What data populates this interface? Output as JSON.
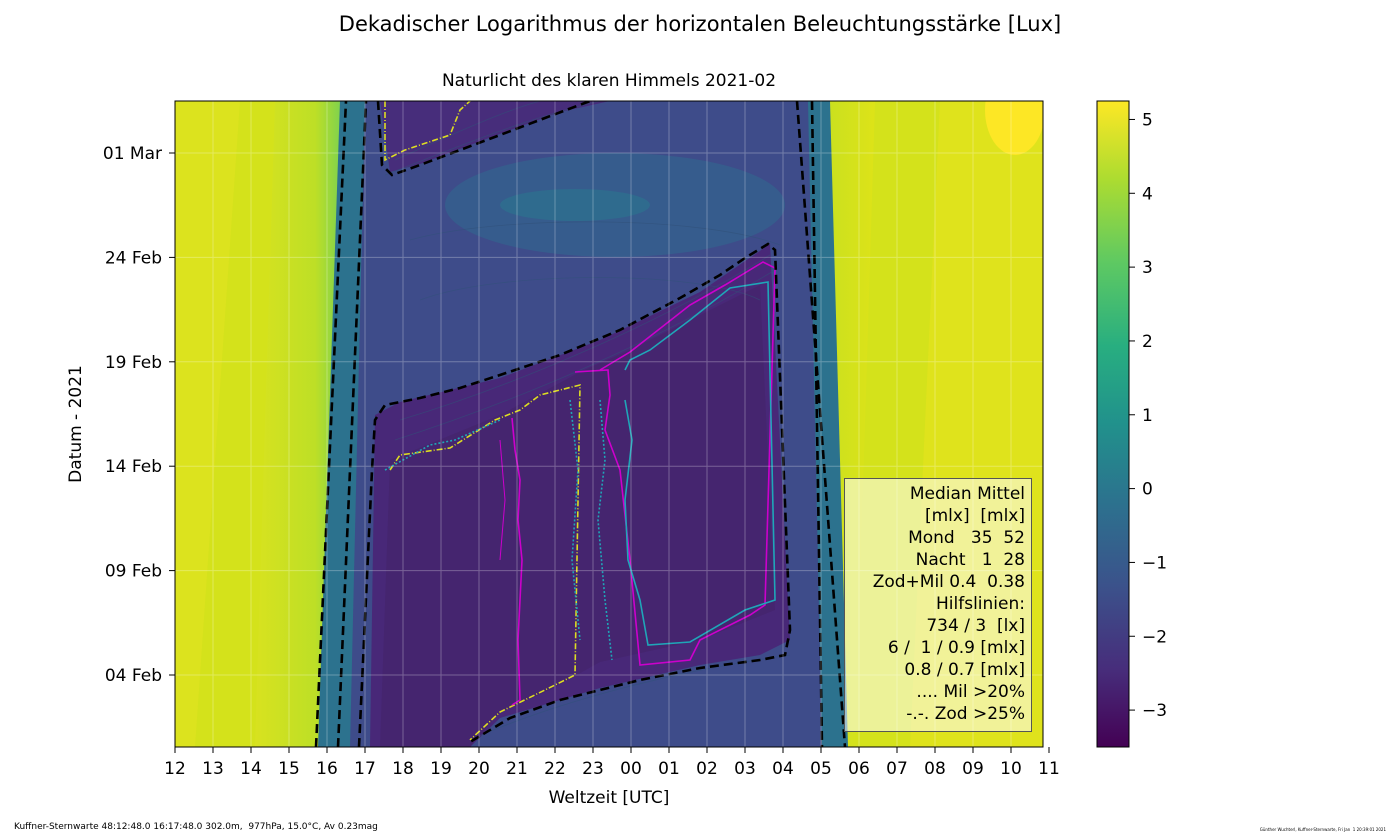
{
  "suptitle": "Dekadischer Logarithmus der horizontalen Beleuchtungsstärke [Lux]",
  "chart_data": {
    "type": "heatmap",
    "title": "Naturlicht des klaren Himmels 2021-02",
    "xlabel": "Weltzeit [UTC]",
    "ylabel": "Datum - 2021",
    "x_ticks": [
      "12",
      "13",
      "14",
      "15",
      "16",
      "17",
      "18",
      "19",
      "20",
      "21",
      "22",
      "23",
      "00",
      "01",
      "02",
      "03",
      "04",
      "05",
      "06",
      "07",
      "08",
      "09",
      "10",
      "11"
    ],
    "y_ticks": [
      "01 Mar",
      "24 Feb",
      "19 Feb",
      "14 Feb",
      "09 Feb",
      "04 Feb"
    ],
    "colorbar": {
      "ticks": [
        "5",
        "4",
        "3",
        "2",
        "1",
        "0",
        "−1",
        "−2",
        "−3"
      ],
      "range": [
        -3.5,
        5.25
      ],
      "colormap": "viridis"
    },
    "day_night_boundary": {
      "evening_utc": [
        {
          "date": "2021-01-31",
          "utc": 15.93
        },
        {
          "date": "2021-03-03",
          "utc": 16.65
        }
      ],
      "morning_utc": [
        {
          "date": "2021-01-31",
          "utc": 6.35
        },
        {
          "date": "2021-03-03",
          "utc": 5.45
        }
      ]
    },
    "moon_boundary": [
      {
        "date": "2021-01-31",
        "utc": 20.2
      },
      {
        "date": "2021-02-17",
        "utc": 17.3
      },
      {
        "date": "2021-02-20",
        "utc": 23.0
      },
      {
        "date": "2021-02-25",
        "utc": 4.5
      }
    ],
    "grid": true
  },
  "legend": {
    "lines": [
      "Median Mittel",
      "[mlx]  [mlx]",
      "Mond   35  52",
      "Nacht   1  28",
      "Zod+Mil 0.4  0.38",
      "Hilfslinien:",
      "734 / 3  [lx]",
      "6 /  1 / 0.9 [mlx]",
      "0.8 / 0.7 [mlx]",
      ".... Mil >20%",
      "-.-. Zod >25%"
    ]
  },
  "footer": {
    "left": "Kuffner-Sternwarte 48:12:48.0 16:17:48.0 302.0m,  977hPa, 15.0°C, Av 0.23mag",
    "right": "Günther Wuchterl, Kuffner-Sternwarte, Fri Jan  1 20:39:01 2021"
  },
  "colors": {
    "dark": "#472d7b",
    "darker": "#44206a",
    "moon": "#3e4c8a",
    "twilight": "#2c728e",
    "day": "#d2e21b",
    "dayBright": "#fde725",
    "dashed": "#000000",
    "magenta": "#cc00cc",
    "cyan": "#1fa6b8",
    "yellow": "#dddd22"
  }
}
